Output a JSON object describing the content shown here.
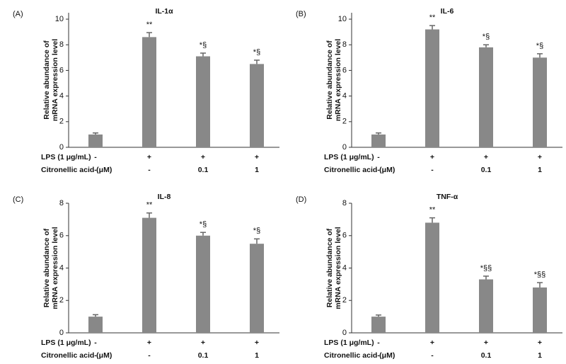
{
  "chart_data": [
    {
      "type": "bar",
      "panel": "(A)",
      "title": "IL-1α",
      "ylabel": [
        "Relative abundance of",
        "mRNA expression level"
      ],
      "values": [
        1.0,
        8.6,
        7.1,
        6.5
      ],
      "errors": [
        0.12,
        0.35,
        0.25,
        0.3
      ],
      "annotations": [
        null,
        "**",
        "*§",
        "*§"
      ],
      "color": "#888888",
      "ylim": [
        0,
        10.5
      ],
      "yticks": [
        0,
        2,
        4,
        6,
        8,
        10
      ],
      "rows": [
        {
          "label": "LPS (1 μg/mL)",
          "cells": [
            "-",
            "+",
            "+",
            "+"
          ]
        },
        {
          "label": "Citronellic acid (μM)",
          "cells": [
            "-",
            "-",
            "0.1",
            "1"
          ]
        }
      ]
    },
    {
      "type": "bar",
      "panel": "(B)",
      "title": "IL-6",
      "ylabel": [
        "Relative abundance of",
        "mRNA expression level"
      ],
      "values": [
        1.0,
        9.2,
        7.8,
        7.0
      ],
      "errors": [
        0.12,
        0.3,
        0.2,
        0.3
      ],
      "annotations": [
        null,
        "**",
        "*§",
        "*§"
      ],
      "color": "#888888",
      "ylim": [
        0,
        10.5
      ],
      "yticks": [
        0,
        2,
        4,
        6,
        8,
        10
      ],
      "rows": [
        {
          "label": "LPS (1 μg/mL)",
          "cells": [
            "-",
            "+",
            "+",
            "+"
          ]
        },
        {
          "label": "Citronellic acid (μM)",
          "cells": [
            "-",
            "-",
            "0.1",
            "1"
          ]
        }
      ]
    },
    {
      "type": "bar",
      "panel": "(C)",
      "title": "IL-8",
      "ylabel": [
        "Relative abundance of",
        "mRNA expression level"
      ],
      "values": [
        1.0,
        7.1,
        6.0,
        5.5
      ],
      "errors": [
        0.12,
        0.3,
        0.2,
        0.3
      ],
      "annotations": [
        null,
        "**",
        "*§",
        "*§"
      ],
      "color": "#888888",
      "ylim": [
        0,
        8
      ],
      "yticks": [
        0,
        2,
        4,
        6,
        8
      ],
      "rows": [
        {
          "label": "LPS (1 μg/mL)",
          "cells": [
            "-",
            "+",
            "+",
            "+"
          ]
        },
        {
          "label": "Citronellic acid (μM)",
          "cells": [
            "-",
            "-",
            "0.1",
            "1"
          ]
        }
      ]
    },
    {
      "type": "bar",
      "panel": "(D)",
      "title": "TNF-α",
      "ylabel": [
        "Relative abundance of",
        "mRNA expression level"
      ],
      "values": [
        1.0,
        6.8,
        3.3,
        2.8
      ],
      "errors": [
        0.1,
        0.3,
        0.2,
        0.3
      ],
      "annotations": [
        null,
        "**",
        "*§§",
        "*§§"
      ],
      "color": "#888888",
      "ylim": [
        0,
        8
      ],
      "yticks": [
        0,
        2,
        4,
        6,
        8
      ],
      "rows": [
        {
          "label": "LPS (1 μg/mL)",
          "cells": [
            "-",
            "+",
            "+",
            "+"
          ]
        },
        {
          "label": "Citronellic acid (μM)",
          "cells": [
            "-",
            "-",
            "0.1",
            "1"
          ]
        }
      ]
    }
  ]
}
